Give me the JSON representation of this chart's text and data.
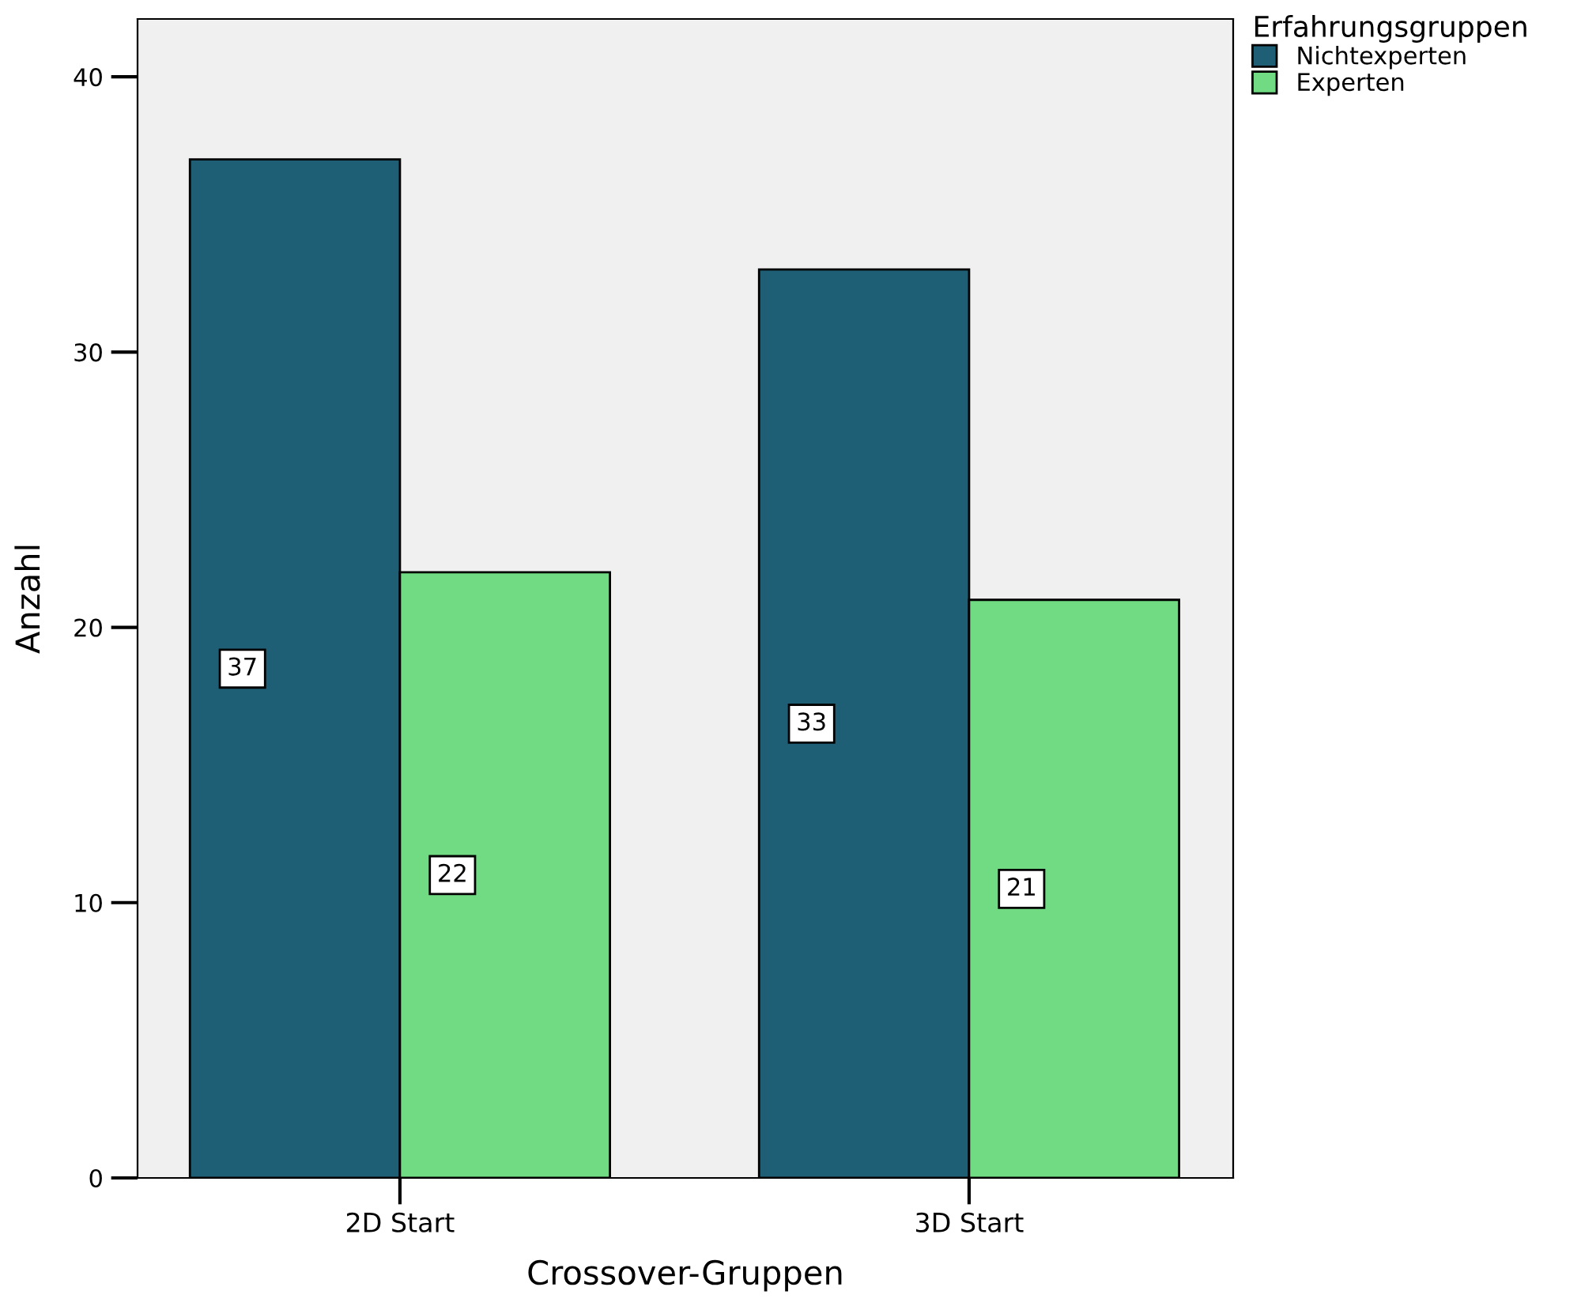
{
  "chart_data": {
    "type": "bar",
    "xlabel": "Crossover-Gruppen",
    "ylabel": "Anzahl",
    "legend_title": "Erfahrungsgruppen",
    "categories": [
      "2D Start",
      "3D Start"
    ],
    "series": [
      {
        "name": "Nichtexperten",
        "color": "#1f5f75",
        "values": [
          37,
          33
        ]
      },
      {
        "name": "Experten",
        "color": "#70db83",
        "values": [
          22,
          21
        ]
      }
    ],
    "ylim": [
      0,
      42.1
    ],
    "yticks": [
      0,
      10,
      20,
      30,
      40
    ],
    "data_labels": true,
    "legend": "top right",
    "grid": false
  }
}
